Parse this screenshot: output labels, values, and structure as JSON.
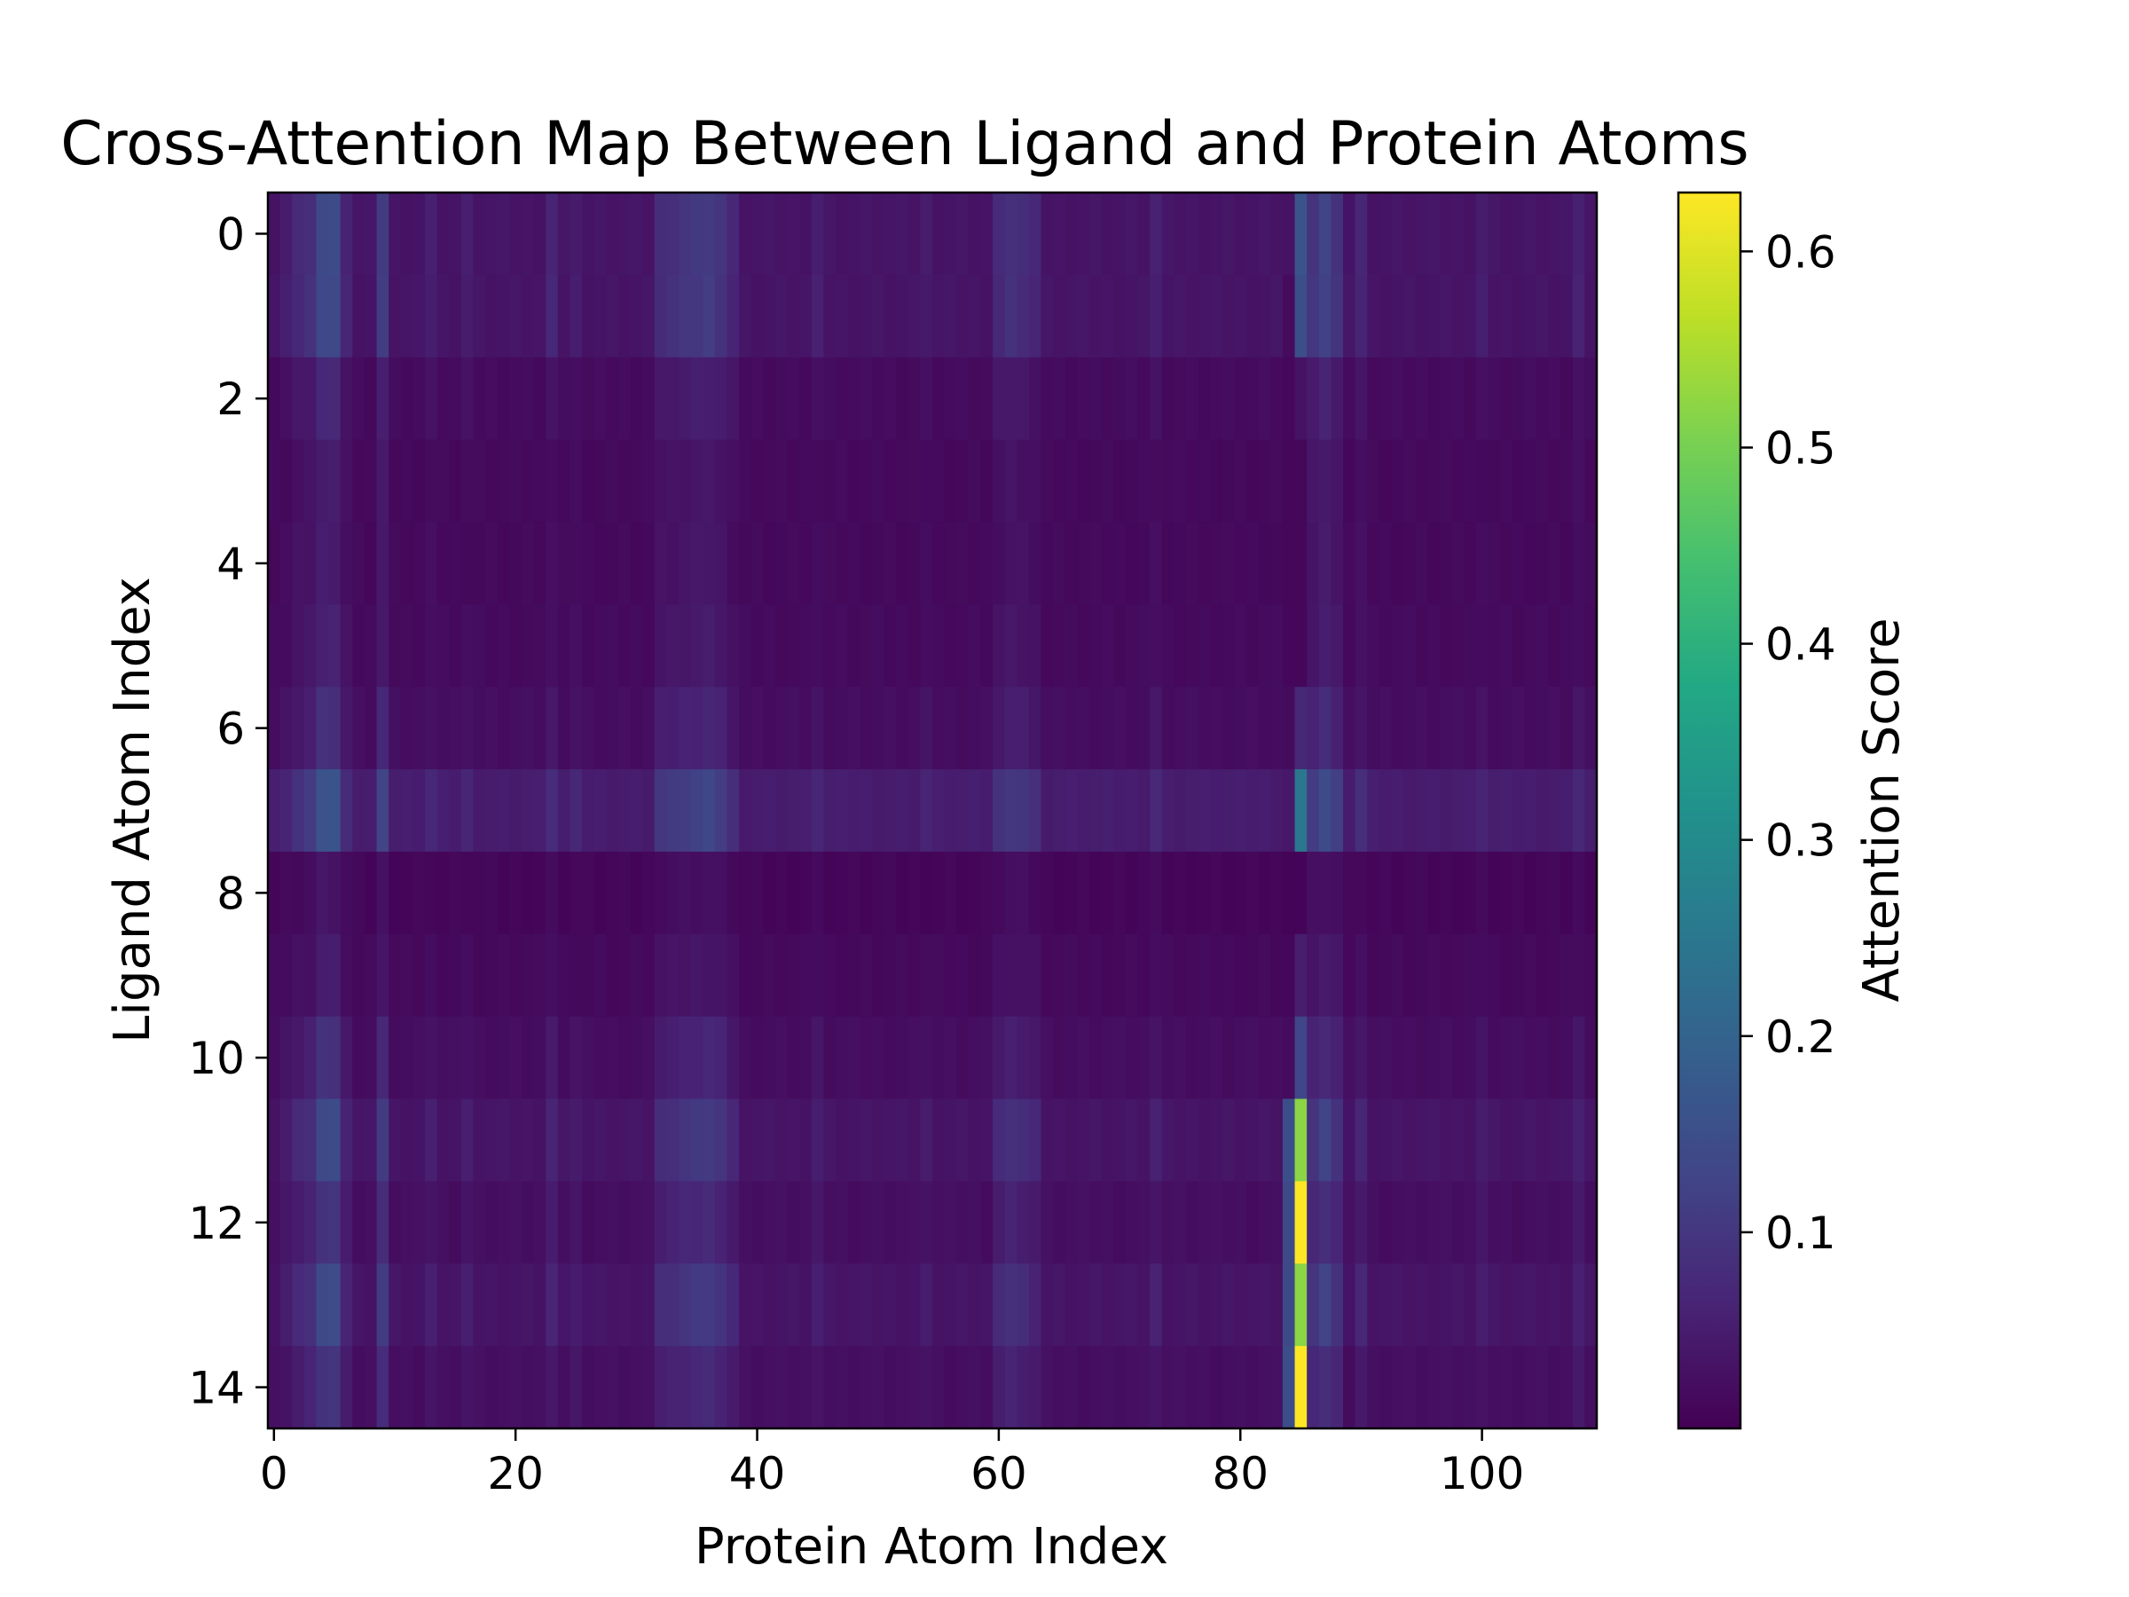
{
  "chart_data": {
    "type": "heatmap",
    "title": "Cross-Attention Map Between Ligand and Protein Atoms",
    "xlabel": "Protein Atom Index",
    "ylabel": "Ligand Atom Index",
    "colorbar_label": "Attention Score",
    "colormap": "viridis",
    "n_rows": 15,
    "n_cols": 110,
    "x_ticks": [
      0,
      20,
      40,
      60,
      80,
      100
    ],
    "x_tick_labels": [
      "0",
      "20",
      "40",
      "60",
      "80",
      "100"
    ],
    "y_ticks": [
      0,
      2,
      4,
      6,
      8,
      10,
      12,
      14
    ],
    "y_tick_labels": [
      "0",
      "2",
      "4",
      "6",
      "8",
      "10",
      "12",
      "14"
    ],
    "colorbar_range": [
      0.0,
      0.63
    ],
    "colorbar_ticks": [
      0.1,
      0.2,
      0.3,
      0.4,
      0.5,
      0.6
    ],
    "colorbar_tick_labels": [
      "0.1",
      "0.2",
      "0.3",
      "0.4",
      "0.5",
      "0.6"
    ],
    "row_base": [
      0.03,
      0.03,
      0.014,
      0.01,
      0.01,
      0.012,
      0.018,
      0.045,
      0.005,
      0.01,
      0.018,
      0.03,
      0.02,
      0.03,
      0.02
    ],
    "col_profile": [
      [
        1,
        0.01
      ],
      [
        2,
        0.025
      ],
      [
        3,
        0.035
      ],
      [
        4,
        0.07
      ],
      [
        5,
        0.07
      ],
      [
        6,
        0.02
      ],
      [
        9,
        0.05
      ],
      [
        13,
        0.012
      ],
      [
        16,
        0.01
      ],
      [
        23,
        0.02
      ],
      [
        25,
        0.01
      ],
      [
        32,
        0.03
      ],
      [
        33,
        0.035
      ],
      [
        34,
        0.04
      ],
      [
        35,
        0.045
      ],
      [
        36,
        0.05
      ],
      [
        37,
        0.04
      ],
      [
        38,
        0.02
      ],
      [
        45,
        0.012
      ],
      [
        54,
        0.008
      ],
      [
        60,
        0.025
      ],
      [
        61,
        0.035
      ],
      [
        62,
        0.03
      ],
      [
        63,
        0.02
      ],
      [
        73,
        0.015
      ],
      [
        84,
        0.02
      ],
      [
        86,
        0.04
      ],
      [
        87,
        0.06
      ],
      [
        88,
        0.04
      ],
      [
        90,
        0.02
      ],
      [
        100,
        0.01
      ],
      [
        108,
        0.015
      ]
    ],
    "column_85_values": [
      0.16,
      0.15,
      0.03,
      0.01,
      0.01,
      0.01,
      0.07,
      0.25,
      0.005,
      0.05,
      0.13,
      0.52,
      0.63,
      0.52,
      0.63
    ],
    "column_84_values": [
      0.03,
      0.02,
      0.01,
      0.01,
      0.01,
      0.01,
      0.02,
      0.04,
      0.005,
      0.01,
      0.02,
      0.15,
      0.14,
      0.14,
      0.15
    ]
  }
}
